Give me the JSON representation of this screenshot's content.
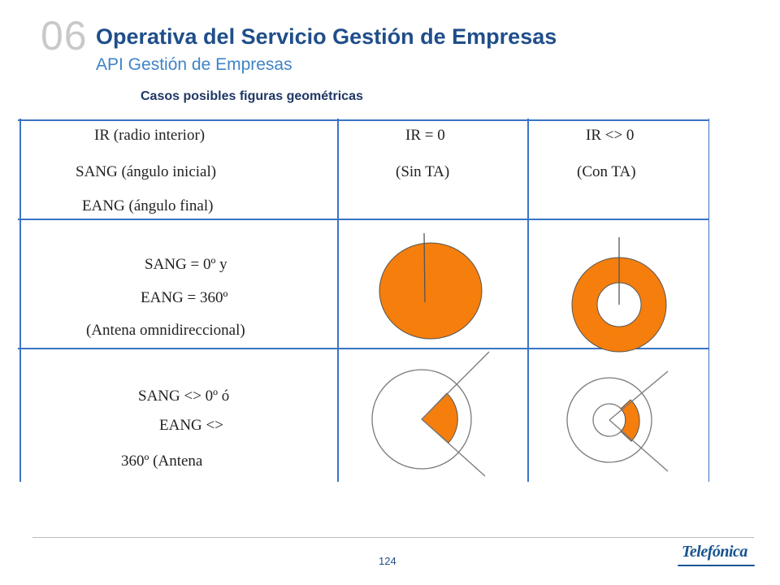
{
  "header": {
    "section_number": "06",
    "title": "Operativa del Servicio Gestión de Empresas",
    "subtitle": "API Gestión de Empresas",
    "caption": "Casos posibles figuras geométricas"
  },
  "table": {
    "header_row": {
      "param_lines": [
        "IR (radio interior)",
        "SANG (ángulo inicial)",
        "EANG (ángulo final)"
      ],
      "col2_lines": [
        "IR = 0",
        "(Sin TA)"
      ],
      "col3_lines": [
        "IR <> 0",
        "(Con TA)"
      ]
    },
    "row1": {
      "lines": [
        "SANG = 0º y",
        "EANG = 360º",
        "(Antena omnidireccional)"
      ],
      "figure_sin_ta": "filled-circle-diagram",
      "figure_con_ta": "filled-ring-diagram"
    },
    "row2": {
      "lines": [
        "SANG <> 0º ó",
        "EANG <>",
        "360º (Antena"
      ],
      "figure_sin_ta": "sector-diagram",
      "figure_con_ta": "annular-sector-diagram"
    },
    "colors": {
      "fill": "#f57e0c",
      "grid": "#3a74c4",
      "outline": "#7a7a7a"
    }
  },
  "footer": {
    "page_number": "124",
    "brand": "Telefónica"
  }
}
